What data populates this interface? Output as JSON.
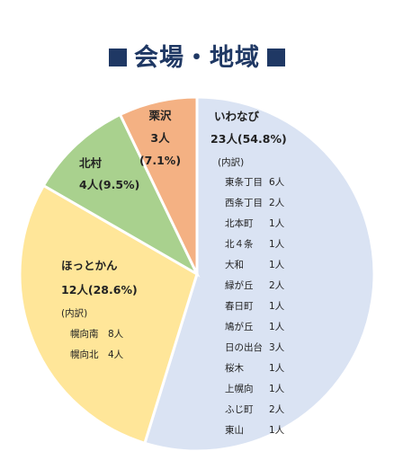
{
  "title": "会場・地域",
  "chart_data": {
    "type": "pie",
    "title": "会場・地域",
    "slices": [
      {
        "name": "いわなび",
        "value": 23,
        "value_label": "23人(54.8%)",
        "color": "#dae3f3",
        "breakdown_title": "(内訳)",
        "breakdown": [
          {
            "name": "東条丁目",
            "value": "6人"
          },
          {
            "name": "西条丁目",
            "value": "2人"
          },
          {
            "name": "北本町",
            "value": "1人"
          },
          {
            "name": "北４条",
            "value": "1人"
          },
          {
            "name": "大和",
            "value": "1人"
          },
          {
            "name": "緑が丘",
            "value": "2人"
          },
          {
            "name": "春日町",
            "value": "1人"
          },
          {
            "name": "鳩が丘",
            "value": "1人"
          },
          {
            "name": "日の出台",
            "value": "3人"
          },
          {
            "name": "桜木",
            "value": "1人"
          },
          {
            "name": "上幌向",
            "value": "1人"
          },
          {
            "name": "ふじ町",
            "value": "2人"
          },
          {
            "name": "東山",
            "value": "1人"
          }
        ]
      },
      {
        "name": "ほっとかん",
        "value": 12,
        "value_label": "12人(28.6%)",
        "color": "#ffe699",
        "breakdown_title": "(内訳)",
        "breakdown": [
          {
            "name": "幌向南",
            "value": "8人"
          },
          {
            "name": "幌向北",
            "value": "4人"
          }
        ]
      },
      {
        "name": "北村",
        "value": 4,
        "value_label": "4人(9.5%)",
        "color": "#a9d18e"
      },
      {
        "name": "栗沢",
        "value": 3,
        "value_label_line1": "3人",
        "value_label_line2": "(7.1%)",
        "color": "#f4b183"
      }
    ]
  }
}
